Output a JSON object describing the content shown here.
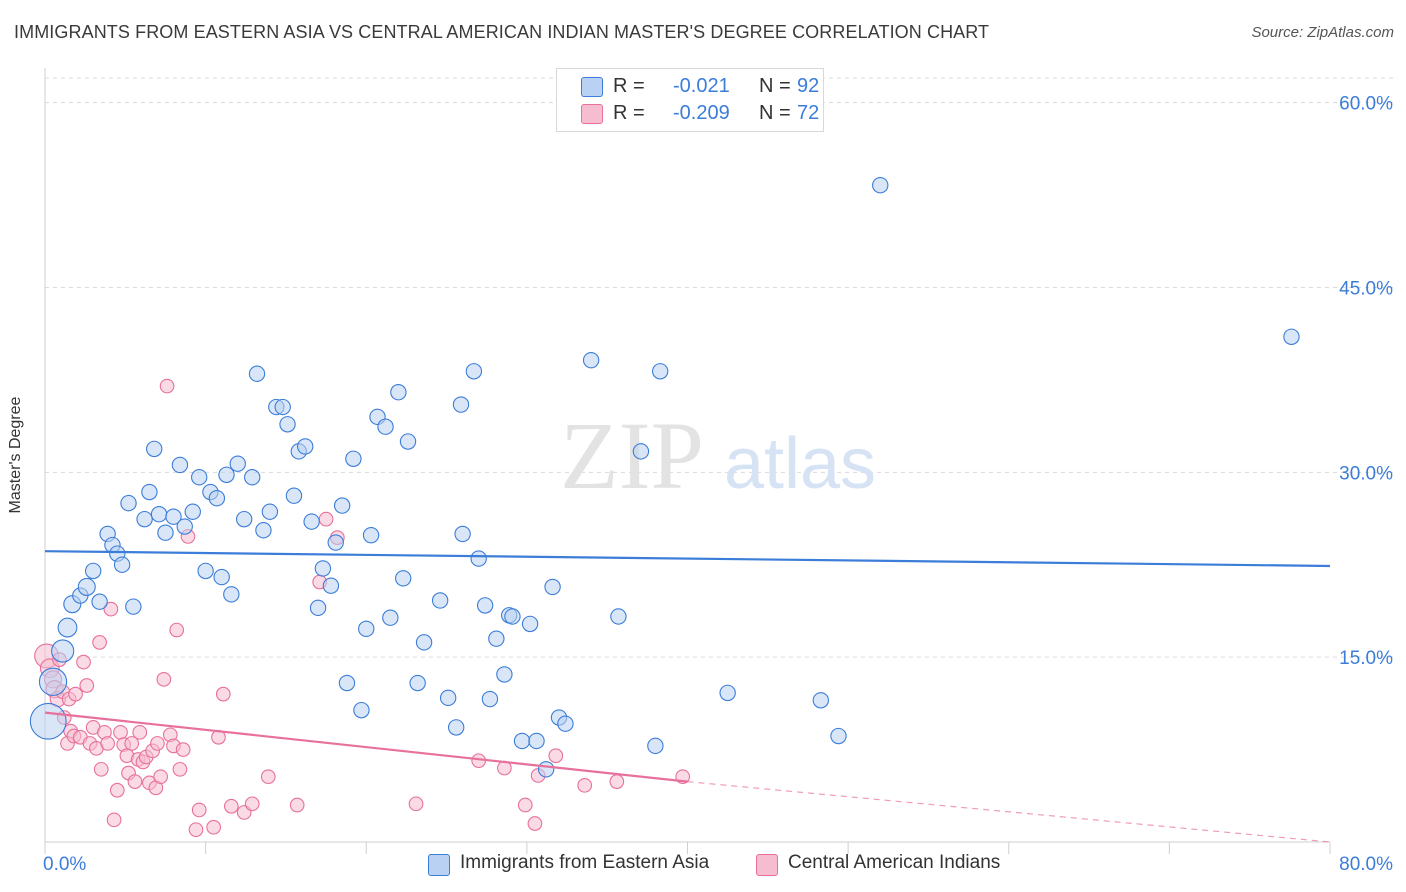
{
  "title": "IMMIGRANTS FROM EASTERN ASIA VS CENTRAL AMERICAN INDIAN MASTER'S DEGREE CORRELATION CHART",
  "source": "Source: ZipAtlas.com",
  "watermark": {
    "zip": "ZIP",
    "atlas": "atlas"
  },
  "colors": {
    "blue": "#3b7dd8",
    "blue_fill": "#b9d2f3",
    "pink": "#e8709c",
    "pink_fill": "#f6bdd0",
    "grid": "#d9d9d9",
    "axis_text": "#3b7dd8"
  },
  "legend_top": {
    "rows": [
      {
        "r_label": "R =",
        "r_value": "-0.021",
        "n_label": "N =",
        "n_value": "92"
      },
      {
        "r_label": "R =",
        "r_value": "-0.209",
        "n_label": "N =",
        "n_value": "72"
      }
    ]
  },
  "legend_bottom": {
    "series1": "Immigrants from Eastern Asia",
    "series2": "Central American Indians"
  },
  "chart_data": {
    "type": "scatter",
    "xlabel": "",
    "ylabel": "Master's Degree",
    "xlim": [
      0,
      80
    ],
    "ylim": [
      0,
      62
    ],
    "x_tick_labels": [
      "0.0%",
      "80.0%"
    ],
    "y_ticks": [
      15,
      30,
      45,
      60
    ],
    "y_tick_labels": [
      "15.0%",
      "30.0%",
      "45.0%",
      "60.0%"
    ],
    "grid": true,
    "series": [
      {
        "name": "Immigrants from Eastern Asia",
        "R": -0.021,
        "N": 92,
        "trend": {
          "x": [
            0,
            80
          ],
          "y": [
            23.6,
            22.4
          ]
        },
        "points": [
          [
            0.2,
            9.8,
            2.1
          ],
          [
            0.5,
            13.0,
            1.6
          ],
          [
            1.1,
            15.5,
            1.3
          ],
          [
            1.4,
            17.4,
            1.1
          ],
          [
            1.7,
            19.3,
            1.0
          ],
          [
            2.2,
            20.0,
            0.9
          ],
          [
            2.6,
            20.7,
            1.0
          ],
          [
            3.0,
            22.0,
            0.9
          ],
          [
            3.4,
            19.5,
            0.9
          ],
          [
            3.9,
            25.0,
            0.9
          ],
          [
            4.2,
            24.1,
            0.9
          ],
          [
            4.5,
            23.4,
            0.9
          ],
          [
            4.8,
            22.5,
            0.9
          ],
          [
            5.2,
            27.5,
            0.9
          ],
          [
            5.5,
            19.1,
            0.9
          ],
          [
            6.2,
            26.2,
            0.9
          ],
          [
            6.5,
            28.4,
            0.9
          ],
          [
            6.8,
            31.9,
            0.9
          ],
          [
            7.1,
            26.6,
            0.9
          ],
          [
            7.5,
            25.1,
            0.9
          ],
          [
            8.0,
            26.4,
            0.9
          ],
          [
            8.4,
            30.6,
            0.9
          ],
          [
            8.7,
            25.6,
            0.9
          ],
          [
            9.2,
            26.8,
            0.9
          ],
          [
            9.6,
            29.6,
            0.9
          ],
          [
            10.0,
            22.0,
            0.9
          ],
          [
            10.3,
            28.4,
            0.9
          ],
          [
            10.7,
            27.9,
            0.9
          ],
          [
            11.0,
            21.5,
            0.9
          ],
          [
            11.3,
            29.8,
            0.9
          ],
          [
            11.6,
            20.1,
            0.9
          ],
          [
            12.0,
            30.7,
            0.9
          ],
          [
            12.4,
            26.2,
            0.9
          ],
          [
            12.9,
            29.6,
            0.9
          ],
          [
            13.2,
            38.0,
            0.9
          ],
          [
            13.6,
            25.3,
            0.9
          ],
          [
            14.0,
            26.8,
            0.9
          ],
          [
            14.4,
            35.3,
            0.9
          ],
          [
            14.8,
            35.3,
            0.9
          ],
          [
            15.1,
            33.9,
            0.9
          ],
          [
            15.5,
            28.1,
            0.9
          ],
          [
            15.8,
            31.7,
            0.9
          ],
          [
            16.2,
            32.1,
            0.9
          ],
          [
            16.6,
            26.0,
            0.9
          ],
          [
            17.0,
            19.0,
            0.9
          ],
          [
            17.3,
            22.2,
            0.9
          ],
          [
            17.8,
            20.8,
            0.9
          ],
          [
            18.1,
            24.3,
            0.9
          ],
          [
            18.5,
            27.3,
            0.9
          ],
          [
            18.8,
            12.9,
            0.9
          ],
          [
            19.2,
            31.1,
            0.9
          ],
          [
            19.7,
            10.7,
            0.9
          ],
          [
            20.0,
            17.3,
            0.9
          ],
          [
            20.3,
            24.9,
            0.9
          ],
          [
            20.7,
            34.5,
            0.9
          ],
          [
            21.2,
            33.7,
            0.9
          ],
          [
            21.5,
            18.2,
            0.9
          ],
          [
            22.0,
            36.5,
            0.9
          ],
          [
            22.3,
            21.4,
            0.9
          ],
          [
            22.6,
            32.5,
            0.9
          ],
          [
            23.2,
            12.9,
            0.9
          ],
          [
            23.6,
            16.2,
            0.9
          ],
          [
            24.6,
            19.6,
            0.9
          ],
          [
            25.1,
            11.7,
            0.9
          ],
          [
            25.6,
            9.3,
            0.9
          ],
          [
            25.9,
            35.5,
            0.9
          ],
          [
            26.0,
            25.0,
            0.9
          ],
          [
            26.7,
            38.2,
            0.9
          ],
          [
            27.0,
            23.0,
            0.9
          ],
          [
            27.4,
            19.2,
            0.9
          ],
          [
            27.7,
            11.6,
            0.9
          ],
          [
            28.1,
            16.5,
            0.9
          ],
          [
            28.6,
            13.6,
            0.9
          ],
          [
            28.9,
            18.4,
            0.9
          ],
          [
            29.1,
            18.3,
            0.9
          ],
          [
            29.7,
            8.2,
            0.9
          ],
          [
            30.2,
            17.7,
            0.9
          ],
          [
            30.6,
            8.2,
            0.9
          ],
          [
            31.2,
            5.9,
            0.9
          ],
          [
            31.6,
            20.7,
            0.9
          ],
          [
            32.0,
            10.1,
            0.9
          ],
          [
            32.4,
            9.6,
            0.9
          ],
          [
            34.0,
            39.1,
            0.9
          ],
          [
            35.7,
            18.3,
            0.9
          ],
          [
            37.1,
            31.7,
            0.9
          ],
          [
            38.0,
            7.8,
            0.9
          ],
          [
            38.3,
            38.2,
            0.9
          ],
          [
            42.5,
            12.1,
            0.9
          ],
          [
            48.3,
            11.5,
            0.9
          ],
          [
            49.4,
            8.6,
            0.9
          ],
          [
            52.0,
            53.3,
            0.9
          ],
          [
            77.6,
            41.0,
            0.9
          ]
        ]
      },
      {
        "name": "Central American Indians",
        "R": -0.209,
        "N": 72,
        "trend": {
          "x": [
            0,
            40
          ],
          "y": [
            10.5,
            4.9
          ]
        },
        "trend_dashed": {
          "x": [
            40,
            80
          ],
          "y": [
            4.9,
            0.0
          ]
        },
        "points": [
          [
            0.1,
            15.1,
            1.4
          ],
          [
            0.3,
            14.1,
            1.1
          ],
          [
            0.5,
            13.2,
            1.0
          ],
          [
            0.6,
            12.4,
            1.0
          ],
          [
            0.8,
            11.6,
            0.9
          ],
          [
            1.1,
            12.2,
            0.8
          ],
          [
            1.2,
            10.1,
            0.8
          ],
          [
            1.4,
            8.0,
            0.8
          ],
          [
            1.5,
            11.6,
            0.8
          ],
          [
            1.6,
            9.0,
            0.8
          ],
          [
            1.8,
            8.6,
            0.8
          ],
          [
            1.9,
            12.0,
            0.8
          ],
          [
            2.2,
            8.5,
            0.8
          ],
          [
            2.4,
            14.6,
            0.8
          ],
          [
            2.6,
            12.7,
            0.8
          ],
          [
            2.8,
            8.0,
            0.8
          ],
          [
            3.0,
            9.3,
            0.8
          ],
          [
            3.2,
            7.6,
            0.8
          ],
          [
            3.4,
            16.2,
            0.8
          ],
          [
            3.5,
            5.9,
            0.8
          ],
          [
            3.7,
            8.9,
            0.8
          ],
          [
            3.9,
            8.0,
            0.8
          ],
          [
            4.1,
            18.9,
            0.8
          ],
          [
            4.3,
            1.8,
            0.8
          ],
          [
            4.5,
            4.2,
            0.8
          ],
          [
            4.7,
            8.9,
            0.8
          ],
          [
            4.9,
            7.9,
            0.8
          ],
          [
            5.1,
            7.0,
            0.8
          ],
          [
            5.2,
            5.6,
            0.8
          ],
          [
            5.4,
            8.0,
            0.8
          ],
          [
            5.6,
            4.9,
            0.8
          ],
          [
            5.8,
            6.7,
            0.8
          ],
          [
            5.9,
            8.9,
            0.8
          ],
          [
            6.1,
            6.5,
            0.8
          ],
          [
            6.3,
            6.9,
            0.8
          ],
          [
            6.5,
            4.8,
            0.8
          ],
          [
            6.7,
            7.4,
            0.8
          ],
          [
            6.9,
            4.4,
            0.8
          ],
          [
            7.0,
            8.0,
            0.8
          ],
          [
            7.2,
            5.3,
            0.8
          ],
          [
            7.4,
            13.2,
            0.8
          ],
          [
            7.6,
            37.0,
            0.8
          ],
          [
            7.8,
            8.7,
            0.8
          ],
          [
            8.0,
            7.8,
            0.8
          ],
          [
            8.2,
            17.2,
            0.8
          ],
          [
            8.4,
            5.9,
            0.8
          ],
          [
            8.6,
            7.5,
            0.8
          ],
          [
            8.9,
            24.8,
            0.8
          ],
          [
            9.4,
            1.0,
            0.8
          ],
          [
            9.6,
            2.6,
            0.8
          ],
          [
            10.5,
            1.2,
            0.8
          ],
          [
            10.8,
            8.5,
            0.8
          ],
          [
            11.1,
            12.0,
            0.8
          ],
          [
            11.6,
            2.9,
            0.8
          ],
          [
            12.4,
            2.4,
            0.8
          ],
          [
            12.9,
            3.1,
            0.8
          ],
          [
            13.9,
            5.3,
            0.8
          ],
          [
            15.7,
            3.0,
            0.8
          ],
          [
            17.1,
            21.1,
            0.8
          ],
          [
            17.5,
            26.2,
            0.8
          ],
          [
            18.2,
            24.7,
            0.8
          ],
          [
            23.1,
            3.1,
            0.8
          ],
          [
            27.0,
            6.6,
            0.8
          ],
          [
            28.6,
            6.0,
            0.8
          ],
          [
            29.9,
            3.0,
            0.8
          ],
          [
            30.5,
            1.5,
            0.8
          ],
          [
            30.7,
            5.4,
            0.8
          ],
          [
            31.8,
            7.0,
            0.8
          ],
          [
            33.6,
            4.6,
            0.8
          ],
          [
            35.6,
            4.9,
            0.8
          ],
          [
            39.7,
            5.3,
            0.8
          ],
          [
            0.9,
            14.8,
            0.8
          ]
        ]
      }
    ]
  }
}
